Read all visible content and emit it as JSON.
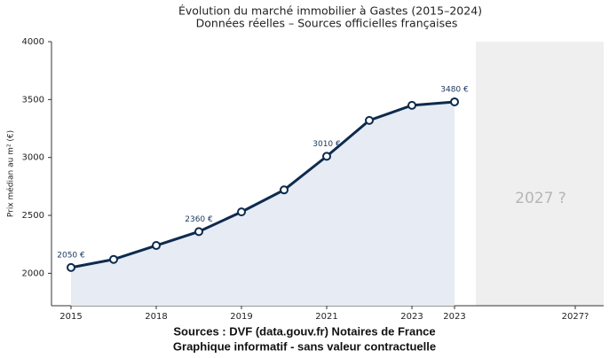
{
  "chart_data": {
    "type": "line",
    "title": "Évolution du marché immobilier à Gastes (2015–2024)",
    "subtitle": "Données réelles – Sources officielles françaises",
    "y_label": "Prix médian au m² (€)",
    "categories": [
      "2015",
      null,
      "2018",
      null,
      "2019",
      null,
      "2021",
      null,
      "2023",
      "2023"
    ],
    "values": [
      2050,
      2120,
      2240,
      2360,
      2530,
      2720,
      3010,
      3320,
      3450,
      3480
    ],
    "value_labels": [
      "2050 €",
      null,
      null,
      "2360 €",
      null,
      null,
      "3010 €",
      null,
      null,
      "3480 €"
    ],
    "color": "#0d2b4e",
    "area_color": "#e6ebf4",
    "ylim": [
      1720,
      4000
    ],
    "yticks": [
      2000,
      2500,
      3000,
      3500,
      4000
    ],
    "grid": false,
    "forecast": {
      "label": "2027 ?",
      "tick_label": "2027?",
      "color": "#efefef"
    },
    "footer": [
      "Sources : DVF (data.gouv.fr) Notaires de France",
      "Graphique informatif - sans valeur contractuelle"
    ]
  }
}
